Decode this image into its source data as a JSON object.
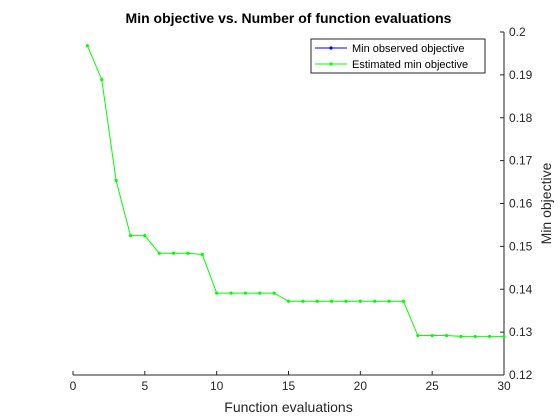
{
  "chart_data": {
    "type": "line",
    "title": "Min objective vs. Number of function evaluations",
    "xlabel": "Function evaluations",
    "ylabel": "Min objective",
    "xlim": [
      0,
      30
    ],
    "ylim": [
      0.12,
      0.2
    ],
    "xticks": [
      "0",
      "5",
      "10",
      "15",
      "20",
      "25",
      "30"
    ],
    "yticks": [
      "0.12",
      "0.13",
      "0.14",
      "0.15",
      "0.16",
      "0.17",
      "0.18",
      "0.19",
      "0.2"
    ],
    "y_axis_location": "right",
    "grid": false,
    "legend_location": "top-right",
    "series": [
      {
        "name": "Min observed objective",
        "color": "#0000ff",
        "marker": "dot",
        "x": [],
        "y": []
      },
      {
        "name": "Estimated min objective",
        "color": "#00ff00",
        "marker": "dot",
        "x": [
          1,
          2,
          3,
          4,
          5,
          6,
          7,
          8,
          9,
          10,
          11,
          12,
          13,
          14,
          15,
          16,
          17,
          18,
          19,
          20,
          21,
          22,
          23,
          24,
          25,
          26,
          27,
          28,
          29,
          30
        ],
        "y": [
          0.1968,
          0.1889,
          0.1654,
          0.1525,
          0.1525,
          0.1484,
          0.1484,
          0.1484,
          0.1481,
          0.1391,
          0.1391,
          0.1391,
          0.1391,
          0.1391,
          0.1372,
          0.1372,
          0.1372,
          0.1372,
          0.1372,
          0.1372,
          0.1372,
          0.1372,
          0.1372,
          0.1292,
          0.1292,
          0.1292,
          0.129,
          0.129,
          0.129,
          0.129
        ]
      }
    ]
  }
}
